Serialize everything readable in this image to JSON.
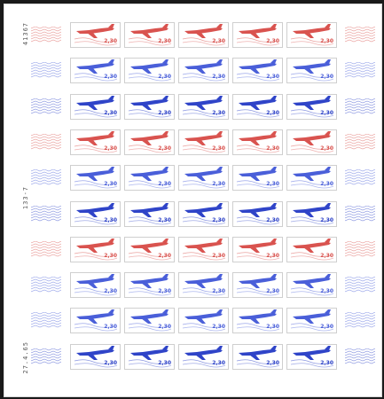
{
  "sheet": {
    "colors": {
      "red": "#d9534f",
      "blue": "#4a5fd9",
      "blue_dark": "#2f44c8"
    },
    "row_colors": [
      "red",
      "blue",
      "blue_dark",
      "red",
      "blue",
      "blue_dark",
      "red",
      "blue",
      "blue",
      "blue_dark"
    ],
    "stamp": {
      "value": "2,30",
      "icon": "jet-airplane-icon"
    },
    "left_margin_texts": [
      "41367",
      "133-7",
      "27.4.65"
    ]
  }
}
